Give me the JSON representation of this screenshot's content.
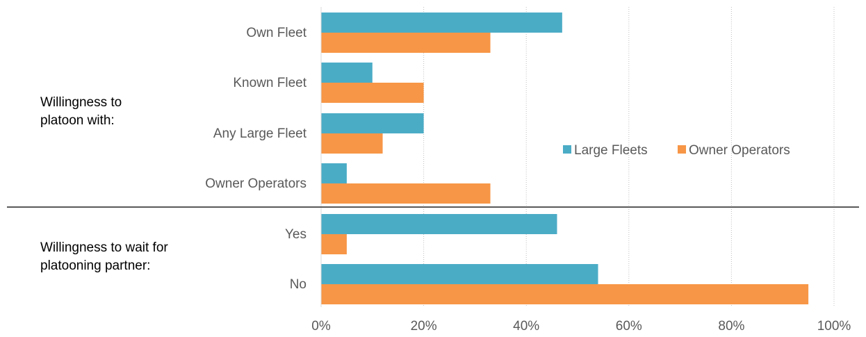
{
  "chart_data": {
    "type": "bar",
    "orientation": "horizontal",
    "categories": [
      "Own Fleet",
      "Known Fleet",
      "Any Large Fleet",
      "Owner Operators",
      "Yes",
      "No"
    ],
    "groups": [
      {
        "label": "Willingness to platoon with:",
        "categories": [
          "Own Fleet",
          "Known Fleet",
          "Any Large Fleet",
          "Owner Operators"
        ]
      },
      {
        "label": "Willingness to wait for platooning partner:",
        "categories": [
          "Yes",
          "No"
        ]
      }
    ],
    "series": [
      {
        "name": "Large Fleets",
        "color": "#4BACC6",
        "values": [
          47,
          10,
          20,
          5,
          46,
          54
        ]
      },
      {
        "name": "Owner Operators",
        "color": "#F79646",
        "values": [
          33,
          20,
          12,
          33,
          5,
          95
        ]
      }
    ],
    "xlim": [
      0,
      100
    ],
    "xticks": [
      0,
      20,
      40,
      60,
      80,
      100
    ],
    "xtick_labels": [
      "0%",
      "20%",
      "40%",
      "60%",
      "80%",
      "100%"
    ],
    "grid": "vertical-dotted",
    "legend_position": "right-middle"
  }
}
